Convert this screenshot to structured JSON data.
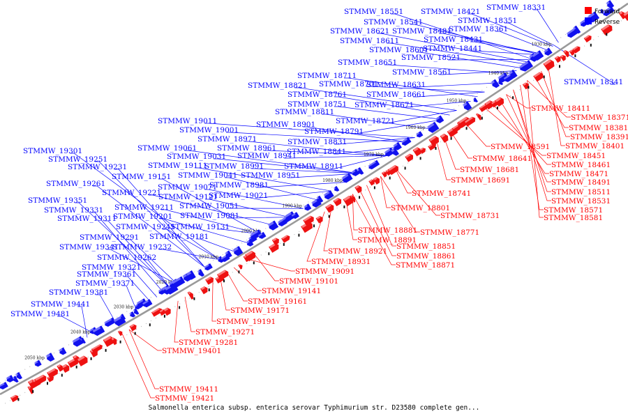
{
  "legend": [
    {
      "label": "Forward",
      "color": "#ff0000"
    },
    {
      "label": "Reverse",
      "color": "#0000ff"
    }
  ],
  "caption": "Salmonella enterica subsp. enterica serovar Typhimurium str. D23580 complete gen...",
  "colors": {
    "forward": "#ff0000",
    "reverse": "#0000ff",
    "backbone": "#888888"
  },
  "ticks": [
    "1930 kbp",
    "1940 kbp",
    "1950 kbp",
    "1960 kbp",
    "1970 kbp",
    "1980 kbp",
    "1990 kbp",
    "2000 kbp",
    "2010 kbp",
    "2020 kbp",
    "2030 kbp",
    "2040 kbp",
    "2050 kbp"
  ],
  "reverse_labels": [
    "STMMW_18331",
    "STMMW_18551",
    "STMMW_18421",
    "STMMW_18541",
    "STMMW_18351",
    "STMMW_18621",
    "STMMW_18481",
    "STMMW_18361",
    "STMMW_18611",
    "STMMW_18431",
    "STMMW_18601",
    "STMMW_18441",
    "STMMW_18521",
    "STMMW_18651",
    "STMMW_18561",
    "STMMW_18341",
    "STMMW_18711",
    "STMMW_18821",
    "STMMW_18701",
    "STMMW_18631",
    "STMMW_18761",
    "STMMW_18661",
    "STMMW_18751",
    "STMMW_18671",
    "STMMW_18811",
    "STMMW_19011",
    "STMMW_18721",
    "STMMW_18901",
    "STMMW_19001",
    "STMMW_18791",
    "STMMW_18971",
    "STMMW_19061",
    "STMMW_18961",
    "STMMW_18831",
    "STMMW_19301",
    "STMMW_19031",
    "STMMW_18841",
    "STMMW_18941",
    "STMMW_19251",
    "STMMW_19111",
    "STMMW_18991",
    "STMMW_18911",
    "STMMW_19231",
    "STMMW_19041",
    "STMMW_18951",
    "STMMW_19151",
    "STMMW_19071",
    "STMMW_18981",
    "STMMW_19261",
    "STMMW_19221",
    "STMMW_19121",
    "STMMW_19021",
    "STMMW_19351",
    "STMMW_19211",
    "STMMW_19051",
    "STMMW_19331",
    "STMMW_19201",
    "STMMW_19081",
    "STMMW_19311",
    "STMMW_19241",
    "STMMW_19131",
    "STMMW_19291",
    "STMMW_19181",
    "STMMW_19341",
    "STMMW_19232",
    "STMMW_19262",
    "STMMW_19321",
    "STMMW_19361",
    "STMMW_19371",
    "STMMW_19381",
    "STMMW_19441",
    "STMMW_19481"
  ],
  "forward_labels": [
    "STMMW_18411",
    "STMMW_18371",
    "STMMW_18381",
    "STMMW_18391",
    "STMMW_18401",
    "STMMW_18591",
    "STMMW_18451",
    "STMMW_18641",
    "STMMW_18461",
    "STMMW_18471",
    "STMMW_18681",
    "STMMW_18691",
    "STMMW_18491",
    "STMMW_18511",
    "STMMW_18741",
    "STMMW_18531",
    "STMMW_18571",
    "STMMW_18801",
    "STMMW_18581",
    "STMMW_18731",
    "STMMW_18881",
    "STMMW_18771",
    "STMMW_18891",
    "STMMW_18851",
    "STMMW_18921",
    "STMMW_18861",
    "STMMW_18931",
    "STMMW_18871",
    "STMMW_19091",
    "STMMW_19101",
    "STMMW_19141",
    "STMMW_19161",
    "STMMW_19171",
    "STMMW_19191",
    "STMMW_19271",
    "STMMW_19281",
    "STMMW_19401",
    "STMMW_19411",
    "STMMW_19421"
  ]
}
